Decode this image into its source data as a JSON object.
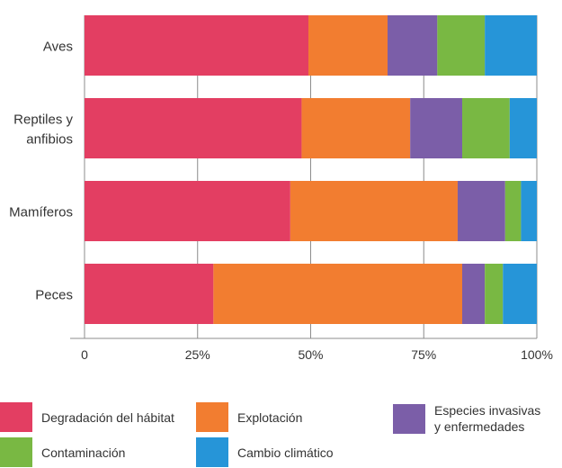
{
  "chart_data": {
    "type": "bar",
    "orientation": "horizontal",
    "stacked": true,
    "categories": [
      "Aves",
      "Reptiles y anfibios",
      "Mamíferos",
      "Peces"
    ],
    "series": [
      {
        "name": "Degradación del hábitat",
        "color": "#e33e62",
        "values": [
          49.5,
          48,
          45.5,
          28.5
        ]
      },
      {
        "name": "Explotación",
        "color": "#f27d30",
        "values": [
          17.5,
          24,
          37,
          55
        ]
      },
      {
        "name": "Especies invasivas\ny enfermedades",
        "color": "#7b5ea8",
        "values": [
          11,
          11.5,
          10.5,
          5
        ]
      },
      {
        "name": "Contaminación",
        "color": "#79b843",
        "values": [
          10.5,
          10.5,
          3.5,
          4
        ]
      },
      {
        "name": "Cambio climático",
        "color": "#2695d8",
        "values": [
          11.5,
          6,
          3.5,
          7.5
        ]
      }
    ],
    "xtick_labels": [
      "0",
      "25%",
      "50%",
      "75%",
      "100%"
    ],
    "xtick_values": [
      0,
      25,
      50,
      75,
      100
    ],
    "xlim": [
      0,
      100
    ],
    "grid": true,
    "legend_position": "bottom"
  }
}
